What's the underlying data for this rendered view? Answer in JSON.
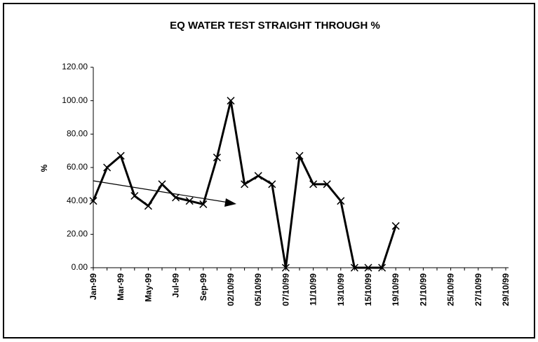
{
  "chart_data": {
    "type": "line",
    "title": "EQ WATER TEST STRAIGHT THROUGH %",
    "y_label": "%",
    "categories": [
      "Jan-99",
      null,
      "Mar-99",
      null,
      "May-99",
      null,
      "Jul-99",
      null,
      "Sep-99",
      null,
      "02/10/99",
      null,
      "05/10/99",
      null,
      "07/10/99",
      null,
      "11/10/99",
      null,
      "13/10/99",
      null,
      "15/10/99",
      null,
      "19/10/99",
      null,
      "21/10/99",
      null,
      "25/10/99",
      null,
      "27/10/99",
      null,
      "29/10/99"
    ],
    "series": [
      {
        "name": "Straight through %",
        "color": "#000000",
        "values": [
          40,
          60,
          67,
          43,
          37,
          50,
          42,
          40,
          38,
          66,
          100,
          50,
          55,
          50,
          0,
          67,
          50,
          50,
          40,
          0,
          0,
          0,
          25,
          null,
          null,
          null,
          null,
          null,
          null,
          null,
          null
        ]
      }
    ],
    "ylim": [
      0,
      120
    ],
    "yticks": [
      {
        "value": 0,
        "label": "0.00"
      },
      {
        "value": 20,
        "label": "20.00"
      },
      {
        "value": 40,
        "label": "40.00"
      },
      {
        "value": 60,
        "label": "60.00"
      },
      {
        "value": 80,
        "label": "80.00"
      },
      {
        "value": 100,
        "label": "100.00"
      },
      {
        "value": 120,
        "label": "120.00"
      }
    ],
    "grid": false
  }
}
